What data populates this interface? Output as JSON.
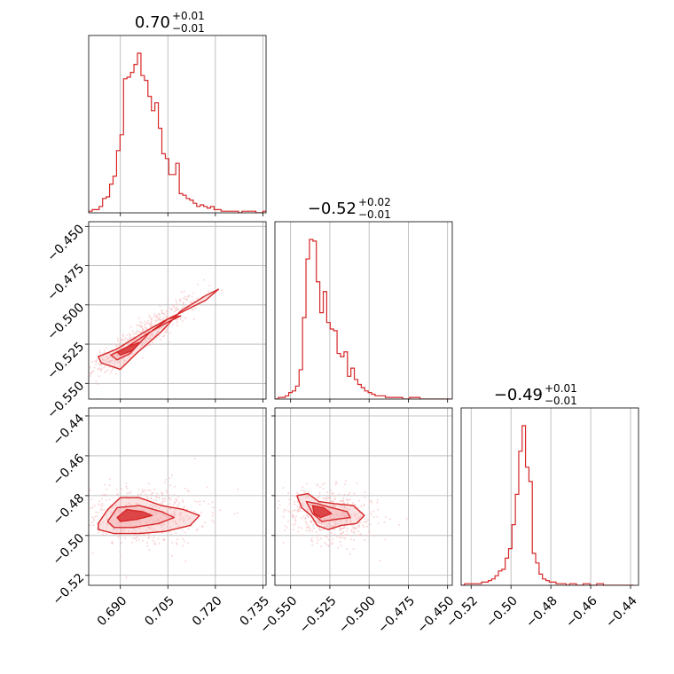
{
  "chart_data": {
    "type": "corner",
    "colors": {
      "series": "#d62728",
      "fill": "#f4a9aa",
      "scatter": "#f6c6c7"
    },
    "grid": true,
    "parameters": [
      {
        "range": [
          0.68,
          0.736
        ],
        "ticks": [
          0.69,
          0.705,
          0.72,
          0.735
        ],
        "tick_labels": [
          "0.690",
          "0.705",
          "0.720",
          "0.735"
        ],
        "title": {
          "main": "0.70",
          "upper": "+0.01",
          "lower": "−0.01"
        }
      },
      {
        "range": [
          -0.56,
          -0.447
        ],
        "ticks": [
          -0.55,
          -0.525,
          -0.5,
          -0.475,
          -0.45
        ],
        "tick_labels": [
          "−0.550",
          "−0.525",
          "−0.500",
          "−0.475",
          "−0.450"
        ],
        "title": {
          "main": "−0.52",
          "upper": "+0.02",
          "lower": "−0.01"
        }
      },
      {
        "range": [
          -0.525,
          -0.436
        ],
        "ticks": [
          -0.52,
          -0.5,
          -0.48,
          -0.46,
          -0.44
        ],
        "tick_labels": [
          "−0.52",
          "−0.50",
          "−0.48",
          "−0.46",
          "−0.44"
        ],
        "title": {
          "main": "−0.49",
          "upper": "+0.01",
          "lower": "−0.01"
        }
      }
    ],
    "histograms": [
      {
        "param": 0,
        "edges_start": 0.68,
        "bin_width": 0.0011,
        "counts": [
          1,
          2,
          2,
          4,
          9,
          10,
          18,
          23,
          39,
          49,
          84,
          85,
          88,
          93,
          100,
          86,
          83,
          73,
          64,
          69,
          53,
          37,
          34,
          24,
          24,
          31,
          12,
          11,
          9,
          8,
          6,
          4,
          5,
          4,
          3,
          4,
          2,
          2,
          1,
          1,
          1,
          1,
          1,
          0,
          1,
          1,
          1,
          1,
          0,
          0,
          1
        ]
      },
      {
        "param": 1,
        "edges_start": -0.56,
        "bin_width": 0.0022,
        "counts": [
          0,
          1,
          1,
          2,
          4,
          5,
          8,
          18,
          50,
          86,
          98,
          97,
          72,
          53,
          66,
          47,
          43,
          42,
          28,
          26,
          29,
          14,
          19,
          12,
          9,
          7,
          5,
          4,
          3,
          2,
          2,
          2,
          1,
          1,
          1,
          1,
          1,
          0,
          0,
          1,
          1,
          1,
          0,
          0,
          0,
          0,
          0,
          0,
          0,
          0,
          0
        ]
      },
      {
        "param": 2,
        "edges_start": -0.525,
        "bin_width": 0.0017,
        "counts": [
          0,
          1,
          1,
          1,
          1,
          1,
          2,
          2,
          3,
          4,
          6,
          9,
          10,
          17,
          23,
          38,
          57,
          84,
          100,
          74,
          65,
          20,
          14,
          7,
          4,
          3,
          2,
          2,
          1,
          1,
          1,
          0,
          1,
          1,
          0,
          0,
          1,
          1,
          0,
          0,
          1,
          1,
          0,
          0,
          0,
          0,
          0,
          0,
          0,
          0,
          0
        ]
      }
    ],
    "contours_2d": [
      {
        "x_param": 0,
        "y_param": 1,
        "levels": [
          [
            [
              0.683,
              -0.533
            ],
            [
              0.689,
              -0.528
            ],
            [
              0.697,
              -0.518
            ],
            [
              0.704,
              -0.51
            ],
            [
              0.711,
              -0.503
            ],
            [
              0.717,
              -0.497
            ],
            [
              0.721,
              -0.49
            ],
            [
              0.717,
              -0.494
            ],
            [
              0.709,
              -0.504
            ],
            [
              0.703,
              -0.517
            ],
            [
              0.695,
              -0.531
            ],
            [
              0.69,
              -0.541
            ],
            [
              0.684,
              -0.537
            ]
          ],
          [
            [
              0.687,
              -0.532
            ],
            [
              0.692,
              -0.527
            ],
            [
              0.698,
              -0.519
            ],
            [
              0.704,
              -0.512
            ],
            [
              0.709,
              -0.507
            ],
            [
              0.705,
              -0.509
            ],
            [
              0.699,
              -0.518
            ],
            [
              0.693,
              -0.531
            ],
            [
              0.689,
              -0.535
            ]
          ],
          [
            [
              0.689,
              -0.53
            ],
            [
              0.693,
              -0.526
            ],
            [
              0.696,
              -0.524
            ],
            [
              0.694,
              -0.529
            ],
            [
              0.69,
              -0.532
            ]
          ]
        ]
      },
      {
        "x_param": 0,
        "y_param": 2,
        "levels": [
          [
            [
              0.683,
              -0.494
            ],
            [
              0.686,
              -0.487
            ],
            [
              0.69,
              -0.481
            ],
            [
              0.696,
              -0.481
            ],
            [
              0.703,
              -0.485
            ],
            [
              0.71,
              -0.487
            ],
            [
              0.715,
              -0.49
            ],
            [
              0.712,
              -0.495
            ],
            [
              0.704,
              -0.498
            ],
            [
              0.696,
              -0.499
            ],
            [
              0.688,
              -0.499
            ],
            [
              0.683,
              -0.497
            ]
          ],
          [
            [
              0.686,
              -0.493
            ],
            [
              0.689,
              -0.486
            ],
            [
              0.696,
              -0.485
            ],
            [
              0.703,
              -0.488
            ],
            [
              0.707,
              -0.491
            ],
            [
              0.702,
              -0.494
            ],
            [
              0.694,
              -0.496
            ],
            [
              0.688,
              -0.496
            ]
          ],
          [
            [
              0.689,
              -0.491
            ],
            [
              0.692,
              -0.487
            ],
            [
              0.697,
              -0.488
            ],
            [
              0.7,
              -0.49
            ],
            [
              0.695,
              -0.492
            ],
            [
              0.69,
              -0.493
            ]
          ]
        ]
      },
      {
        "x_param": 1,
        "y_param": 2,
        "levels": [
          [
            [
              -0.546,
              -0.48
            ],
            [
              -0.539,
              -0.479
            ],
            [
              -0.532,
              -0.483
            ],
            [
              -0.522,
              -0.484
            ],
            [
              -0.51,
              -0.485
            ],
            [
              -0.503,
              -0.49
            ],
            [
              -0.508,
              -0.494
            ],
            [
              -0.518,
              -0.495
            ],
            [
              -0.526,
              -0.497
            ],
            [
              -0.533,
              -0.495
            ],
            [
              -0.537,
              -0.49
            ],
            [
              -0.543,
              -0.486
            ]
          ],
          [
            [
              -0.54,
              -0.483
            ],
            [
              -0.533,
              -0.484
            ],
            [
              -0.524,
              -0.486
            ],
            [
              -0.514,
              -0.488
            ],
            [
              -0.512,
              -0.491
            ],
            [
              -0.522,
              -0.492
            ],
            [
              -0.53,
              -0.493
            ],
            [
              -0.536,
              -0.489
            ]
          ],
          [
            [
              -0.536,
              -0.485
            ],
            [
              -0.529,
              -0.486
            ],
            [
              -0.524,
              -0.489
            ],
            [
              -0.531,
              -0.491
            ],
            [
              -0.535,
              -0.489
            ]
          ]
        ]
      }
    ],
    "scatter_2d": [
      {
        "x_param": 0,
        "y_param": 1,
        "n": 520,
        "center": [
          0.697,
          -0.52
        ],
        "spread": [
          0.009,
          0.013
        ],
        "corr": 0.92
      },
      {
        "x_param": 0,
        "y_param": 2,
        "n": 520,
        "center": [
          0.697,
          -0.49
        ],
        "spread": [
          0.01,
          0.008
        ],
        "corr": 0.1
      },
      {
        "x_param": 1,
        "y_param": 2,
        "n": 520,
        "center": [
          -0.524,
          -0.49
        ],
        "spread": [
          0.015,
          0.007
        ],
        "corr": -0.2
      }
    ]
  }
}
